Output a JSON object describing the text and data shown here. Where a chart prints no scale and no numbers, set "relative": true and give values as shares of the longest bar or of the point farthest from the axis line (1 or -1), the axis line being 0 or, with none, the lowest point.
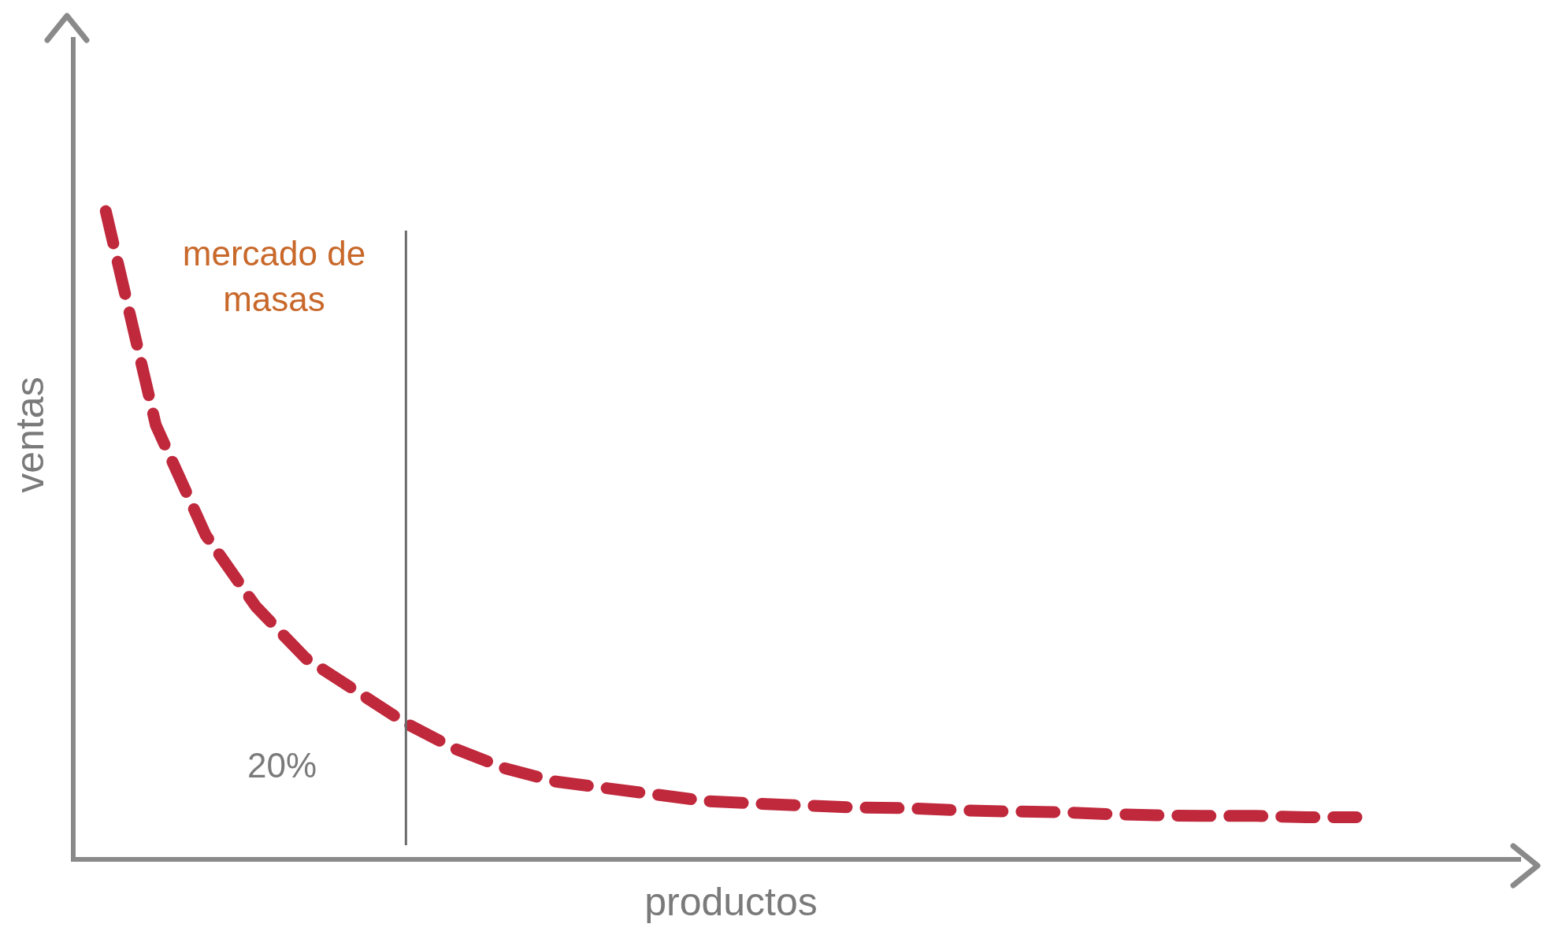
{
  "chart_data": {
    "type": "line",
    "relative": true,
    "xlabel": "productos",
    "ylabel": "ventas",
    "annotations": [
      "mercado de masas",
      "20%"
    ],
    "categories": [
      null,
      null,
      null,
      null,
      null,
      null,
      null,
      null,
      null,
      null,
      null,
      null,
      null,
      null,
      null,
      null,
      null,
      null,
      null,
      null,
      null,
      null,
      null,
      null,
      null,
      null
    ],
    "series": [
      {
        "color": "#c0283c",
        "values": [
          1.0,
          0.67,
          0.5,
          0.39,
          0.31,
          0.26,
          0.21,
          0.17,
          0.14,
          0.12,
          0.11,
          0.1,
          0.09,
          0.086,
          0.083,
          0.08,
          0.079,
          0.076,
          0.074,
          0.073,
          0.07,
          0.068,
          0.067,
          0.067,
          0.065,
          0.065
        ]
      }
    ],
    "line_style": "dashed",
    "marker": "none",
    "legend": false
  }
}
